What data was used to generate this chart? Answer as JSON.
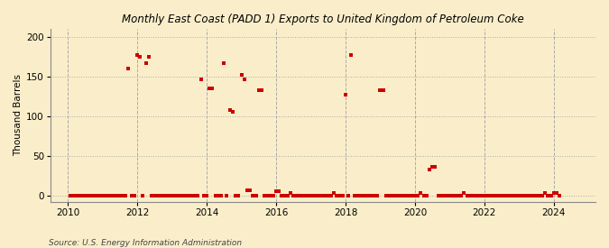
{
  "title": "East Coast (PADD 1) Exports to United Kingdom of Petroleum Coke",
  "title_prefix": "Monthly ",
  "ylabel": "Thousand Barrels",
  "source": "Source: U.S. Energy Information Administration",
  "bg_color": "#faeeca",
  "plot_bg_color": "#faeeca",
  "marker_color": "#cc0000",
  "marker_size": 3.5,
  "xlim": [
    2009.5,
    2025.2
  ],
  "ylim": [
    -8,
    210
  ],
  "yticks": [
    0,
    50,
    100,
    150,
    200
  ],
  "xticks": [
    2010,
    2012,
    2014,
    2016,
    2018,
    2020,
    2022,
    2024
  ],
  "data_points": [
    [
      2010.083,
      0
    ],
    [
      2010.167,
      0
    ],
    [
      2010.25,
      0
    ],
    [
      2010.333,
      0
    ],
    [
      2010.417,
      0
    ],
    [
      2010.5,
      0
    ],
    [
      2010.583,
      0
    ],
    [
      2010.667,
      0
    ],
    [
      2010.75,
      0
    ],
    [
      2010.833,
      0
    ],
    [
      2010.917,
      0
    ],
    [
      2011.0,
      0
    ],
    [
      2011.083,
      0
    ],
    [
      2011.167,
      0
    ],
    [
      2011.25,
      0
    ],
    [
      2011.333,
      0
    ],
    [
      2011.417,
      0
    ],
    [
      2011.5,
      0
    ],
    [
      2011.583,
      0
    ],
    [
      2011.667,
      0
    ],
    [
      2011.75,
      160
    ],
    [
      2011.833,
      0
    ],
    [
      2011.917,
      0
    ],
    [
      2012.0,
      177
    ],
    [
      2012.083,
      175
    ],
    [
      2012.167,
      0
    ],
    [
      2012.25,
      167
    ],
    [
      2012.333,
      175
    ],
    [
      2012.417,
      0
    ],
    [
      2012.5,
      0
    ],
    [
      2012.583,
      0
    ],
    [
      2012.667,
      0
    ],
    [
      2012.75,
      0
    ],
    [
      2012.833,
      0
    ],
    [
      2012.917,
      0
    ],
    [
      2013.0,
      0
    ],
    [
      2013.083,
      0
    ],
    [
      2013.167,
      0
    ],
    [
      2013.25,
      0
    ],
    [
      2013.333,
      0
    ],
    [
      2013.417,
      0
    ],
    [
      2013.5,
      0
    ],
    [
      2013.583,
      0
    ],
    [
      2013.667,
      0
    ],
    [
      2013.75,
      0
    ],
    [
      2013.833,
      146
    ],
    [
      2013.917,
      0
    ],
    [
      2014.0,
      0
    ],
    [
      2014.083,
      135
    ],
    [
      2014.167,
      135
    ],
    [
      2014.25,
      0
    ],
    [
      2014.333,
      0
    ],
    [
      2014.417,
      0
    ],
    [
      2014.5,
      167
    ],
    [
      2014.583,
      0
    ],
    [
      2014.667,
      108
    ],
    [
      2014.75,
      105
    ],
    [
      2014.833,
      0
    ],
    [
      2014.917,
      0
    ],
    [
      2015.0,
      152
    ],
    [
      2015.083,
      146
    ],
    [
      2015.167,
      7
    ],
    [
      2015.25,
      7
    ],
    [
      2015.333,
      0
    ],
    [
      2015.417,
      0
    ],
    [
      2015.5,
      133
    ],
    [
      2015.583,
      133
    ],
    [
      2015.667,
      0
    ],
    [
      2015.75,
      0
    ],
    [
      2015.833,
      0
    ],
    [
      2015.917,
      0
    ],
    [
      2016.0,
      5
    ],
    [
      2016.083,
      5
    ],
    [
      2016.167,
      0
    ],
    [
      2016.25,
      0
    ],
    [
      2016.333,
      0
    ],
    [
      2016.417,
      3
    ],
    [
      2016.5,
      0
    ],
    [
      2016.583,
      0
    ],
    [
      2016.667,
      0
    ],
    [
      2016.75,
      0
    ],
    [
      2016.833,
      0
    ],
    [
      2016.917,
      0
    ],
    [
      2017.0,
      0
    ],
    [
      2017.083,
      0
    ],
    [
      2017.167,
      0
    ],
    [
      2017.25,
      0
    ],
    [
      2017.333,
      0
    ],
    [
      2017.417,
      0
    ],
    [
      2017.5,
      0
    ],
    [
      2017.583,
      0
    ],
    [
      2017.667,
      3
    ],
    [
      2017.75,
      0
    ],
    [
      2017.833,
      0
    ],
    [
      2017.917,
      0
    ],
    [
      2018.0,
      127
    ],
    [
      2018.083,
      0
    ],
    [
      2018.167,
      177
    ],
    [
      2018.25,
      0
    ],
    [
      2018.333,
      0
    ],
    [
      2018.417,
      0
    ],
    [
      2018.5,
      0
    ],
    [
      2018.583,
      0
    ],
    [
      2018.667,
      0
    ],
    [
      2018.75,
      0
    ],
    [
      2018.833,
      0
    ],
    [
      2018.917,
      0
    ],
    [
      2019.0,
      133
    ],
    [
      2019.083,
      133
    ],
    [
      2019.167,
      0
    ],
    [
      2019.25,
      0
    ],
    [
      2019.333,
      0
    ],
    [
      2019.417,
      0
    ],
    [
      2019.5,
      0
    ],
    [
      2019.583,
      0
    ],
    [
      2019.667,
      0
    ],
    [
      2019.75,
      0
    ],
    [
      2019.833,
      0
    ],
    [
      2019.917,
      0
    ],
    [
      2020.0,
      0
    ],
    [
      2020.083,
      0
    ],
    [
      2020.167,
      3
    ],
    [
      2020.25,
      0
    ],
    [
      2020.333,
      0
    ],
    [
      2020.417,
      33
    ],
    [
      2020.5,
      36
    ],
    [
      2020.583,
      36
    ],
    [
      2020.667,
      0
    ],
    [
      2020.75,
      0
    ],
    [
      2020.833,
      0
    ],
    [
      2020.917,
      0
    ],
    [
      2021.0,
      0
    ],
    [
      2021.083,
      0
    ],
    [
      2021.167,
      0
    ],
    [
      2021.25,
      0
    ],
    [
      2021.333,
      0
    ],
    [
      2021.417,
      3
    ],
    [
      2021.5,
      0
    ],
    [
      2021.583,
      0
    ],
    [
      2021.667,
      0
    ],
    [
      2021.75,
      0
    ],
    [
      2021.833,
      0
    ],
    [
      2021.917,
      0
    ],
    [
      2022.0,
      0
    ],
    [
      2022.083,
      0
    ],
    [
      2022.167,
      0
    ],
    [
      2022.25,
      0
    ],
    [
      2022.333,
      0
    ],
    [
      2022.417,
      0
    ],
    [
      2022.5,
      0
    ],
    [
      2022.583,
      0
    ],
    [
      2022.667,
      0
    ],
    [
      2022.75,
      0
    ],
    [
      2022.833,
      0
    ],
    [
      2022.917,
      0
    ],
    [
      2023.0,
      0
    ],
    [
      2023.083,
      0
    ],
    [
      2023.167,
      0
    ],
    [
      2023.25,
      0
    ],
    [
      2023.333,
      0
    ],
    [
      2023.417,
      0
    ],
    [
      2023.5,
      0
    ],
    [
      2023.583,
      0
    ],
    [
      2023.667,
      0
    ],
    [
      2023.75,
      3
    ],
    [
      2023.833,
      0
    ],
    [
      2023.917,
      0
    ],
    [
      2024.0,
      3
    ],
    [
      2024.083,
      3
    ],
    [
      2024.167,
      0
    ]
  ]
}
